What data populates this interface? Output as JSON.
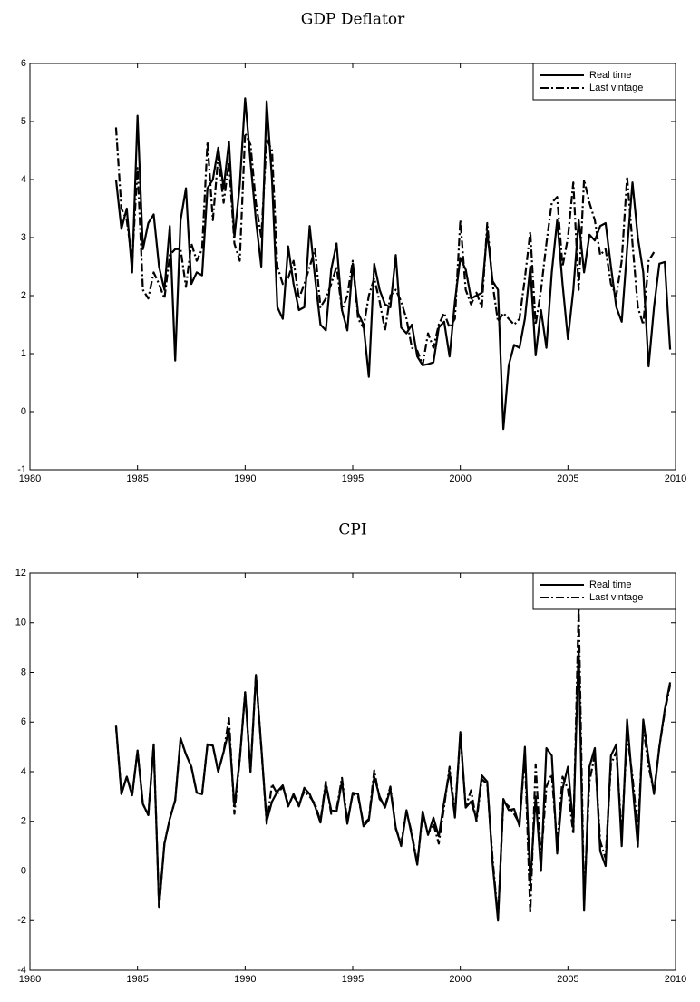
{
  "chart_data": [
    {
      "type": "line",
      "title": "GDP Deflator",
      "x": [
        1984,
        1984.25,
        1984.5,
        1984.75,
        1985,
        1985.25,
        1985.5,
        1985.75,
        1986,
        1986.25,
        1986.5,
        1986.75,
        1987,
        1987.25,
        1987.5,
        1987.75,
        1988,
        1988.25,
        1988.5,
        1988.75,
        1989,
        1989.25,
        1989.5,
        1989.75,
        1990,
        1990.25,
        1990.5,
        1990.75,
        1991,
        1991.25,
        1991.5,
        1991.75,
        1992,
        1992.25,
        1992.5,
        1992.75,
        1993,
        1993.25,
        1993.5,
        1993.75,
        1994,
        1994.25,
        1994.5,
        1994.75,
        1995,
        1995.25,
        1995.5,
        1995.75,
        1996,
        1996.25,
        1996.5,
        1996.75,
        1997,
        1997.25,
        1997.5,
        1997.75,
        1998,
        1998.25,
        1998.5,
        1998.75,
        1999,
        1999.25,
        1999.5,
        1999.75,
        2000,
        2000.25,
        2000.5,
        2000.75,
        2001,
        2001.25,
        2001.5,
        2001.75,
        2002,
        2002.25,
        2002.5,
        2002.75,
        2003,
        2003.25,
        2003.5,
        2003.75,
        2004,
        2004.25,
        2004.5,
        2004.75,
        2005,
        2005.25,
        2005.5,
        2005.75,
        2006,
        2006.25,
        2006.5,
        2006.75,
        2007,
        2007.25,
        2007.5,
        2007.75,
        2008,
        2008.25,
        2008.5,
        2008.75,
        2009,
        2009.25,
        2009.5,
        2009.75
      ],
      "series": [
        {
          "name": "Real time",
          "color": "#000000",
          "line_style": "solid",
          "values": [
            4.0,
            3.15,
            3.5,
            2.4,
            5.1,
            2.8,
            3.25,
            3.4,
            2.5,
            2.1,
            3.2,
            0.88,
            3.3,
            3.85,
            2.2,
            2.4,
            2.35,
            3.85,
            4.0,
            4.55,
            3.85,
            4.65,
            3.0,
            3.9,
            5.4,
            4.3,
            3.3,
            2.5,
            5.35,
            4.0,
            1.8,
            1.6,
            2.85,
            2.2,
            1.75,
            1.8,
            3.2,
            2.3,
            1.5,
            1.4,
            2.45,
            2.9,
            1.75,
            1.4,
            2.55,
            1.7,
            1.5,
            0.6,
            2.55,
            2.1,
            1.85,
            1.8,
            2.7,
            1.45,
            1.35,
            1.5,
            0.95,
            0.8,
            0.82,
            0.85,
            1.45,
            1.55,
            0.95,
            1.9,
            2.65,
            2.45,
            1.95,
            2.0,
            2.05,
            3.1,
            2.25,
            2.1,
            -0.3,
            0.8,
            1.15,
            1.1,
            1.6,
            2.5,
            0.97,
            1.75,
            1.1,
            2.4,
            3.3,
            2.2,
            1.25,
            2.1,
            3.3,
            2.4,
            3.05,
            2.95,
            3.2,
            3.25,
            2.5,
            1.8,
            1.55,
            2.8,
            3.95,
            3.0,
            2.4,
            0.78,
            1.8,
            2.55,
            2.58,
            1.07
          ]
        },
        {
          "name": "Last vintage",
          "color": "#000000",
          "line_style": "dash-dot",
          "values": [
            4.9,
            3.5,
            3.3,
            2.6,
            4.2,
            2.1,
            1.95,
            2.4,
            2.2,
            1.95,
            2.7,
            2.8,
            2.8,
            2.15,
            2.9,
            2.6,
            2.8,
            4.65,
            3.3,
            4.4,
            3.6,
            4.3,
            2.9,
            2.6,
            4.8,
            4.6,
            3.6,
            3.0,
            4.7,
            4.5,
            2.5,
            2.2,
            2.3,
            2.6,
            1.95,
            2.2,
            2.5,
            2.8,
            1.8,
            1.95,
            2.2,
            2.5,
            1.75,
            2.0,
            2.6,
            1.6,
            1.45,
            2.0,
            2.3,
            1.9,
            1.4,
            2.0,
            2.1,
            1.9,
            1.6,
            1.1,
            1.05,
            0.8,
            1.35,
            1.1,
            1.5,
            1.7,
            1.45,
            1.6,
            3.3,
            2.1,
            1.85,
            2.05,
            1.8,
            3.25,
            2.2,
            1.55,
            1.7,
            1.6,
            1.5,
            1.6,
            2.3,
            3.1,
            1.5,
            2.1,
            2.9,
            3.6,
            3.7,
            2.5,
            3.0,
            3.95,
            2.1,
            4.0,
            3.6,
            3.3,
            2.7,
            2.8,
            2.2,
            2.0,
            2.6,
            4.05,
            2.9,
            1.8,
            1.5,
            2.6,
            2.75,
            null,
            null,
            null
          ]
        }
      ],
      "xlim": [
        1980,
        2010
      ],
      "xticks": [
        1980,
        1985,
        1990,
        1995,
        2000,
        2005,
        2010
      ],
      "ylim": [
        -1,
        6
      ],
      "yticks": [
        -1,
        0,
        1,
        2,
        3,
        4,
        5,
        6
      ],
      "legend": "upper right"
    },
    {
      "type": "line",
      "title": "CPI",
      "x": [
        1984,
        1984.25,
        1984.5,
        1984.75,
        1985,
        1985.25,
        1985.5,
        1985.75,
        1986,
        1986.25,
        1986.5,
        1986.75,
        1987,
        1987.25,
        1987.5,
        1987.75,
        1988,
        1988.25,
        1988.5,
        1988.75,
        1989,
        1989.25,
        1989.5,
        1989.75,
        1990,
        1990.25,
        1990.5,
        1990.75,
        1991,
        1991.25,
        1991.5,
        1991.75,
        1992,
        1992.25,
        1992.5,
        1992.75,
        1993,
        1993.25,
        1993.5,
        1993.75,
        1994,
        1994.25,
        1994.5,
        1994.75,
        1995,
        1995.25,
        1995.5,
        1995.75,
        1996,
        1996.25,
        1996.5,
        1996.75,
        1997,
        1997.25,
        1997.5,
        1997.75,
        1998,
        1998.25,
        1998.5,
        1998.75,
        1999,
        1999.25,
        1999.5,
        1999.75,
        2000,
        2000.25,
        2000.5,
        2000.75,
        2001,
        2001.25,
        2001.5,
        2001.75,
        2002,
        2002.25,
        2002.5,
        2002.75,
        2003,
        2003.25,
        2003.5,
        2003.75,
        2004,
        2004.25,
        2004.5,
        2004.75,
        2005,
        2005.25,
        2005.5,
        2005.75,
        2006,
        2006.25,
        2006.5,
        2006.75,
        2007,
        2007.25,
        2007.5,
        2007.75,
        2008,
        2008.25,
        2008.5,
        2008.75,
        2009,
        2009.25,
        2009.5,
        2009.75
      ],
      "series": [
        {
          "name": "Real time",
          "color": "#000000",
          "line_style": "solid",
          "values": [
            5.85,
            3.1,
            3.8,
            3.05,
            4.85,
            2.7,
            2.25,
            5.1,
            -1.45,
            1.1,
            2.1,
            2.85,
            5.35,
            4.7,
            4.2,
            3.15,
            3.1,
            5.1,
            5.05,
            4.0,
            4.8,
            5.7,
            2.6,
            4.5,
            7.2,
            4.0,
            7.9,
            5.0,
            2.0,
            2.8,
            3.2,
            3.45,
            2.6,
            3.1,
            2.6,
            3.35,
            3.1,
            2.6,
            1.95,
            3.5,
            2.45,
            2.4,
            3.6,
            1.9,
            3.15,
            3.1,
            1.8,
            2.05,
            3.8,
            3.0,
            2.55,
            3.3,
            1.75,
            1.0,
            2.45,
            1.4,
            0.25,
            2.4,
            1.45,
            2.15,
            1.4,
            2.8,
            4.0,
            2.15,
            5.6,
            2.55,
            2.8,
            2.1,
            3.85,
            3.6,
            0.3,
            -2.0,
            2.9,
            2.45,
            2.5,
            1.8,
            5.0,
            -0.5,
            3.0,
            0.0,
            4.95,
            4.65,
            0.7,
            3.3,
            4.2,
            1.8,
            9.0,
            -1.6,
            4.2,
            4.95,
            0.8,
            0.2,
            4.65,
            5.1,
            1.0,
            6.1,
            3.5,
            0.98,
            6.1,
            4.5,
            3.1,
            5.0,
            6.5,
            7.6
          ]
        },
        {
          "name": "Last vintage",
          "color": "#000000",
          "line_style": "dash-dot",
          "values": [
            5.85,
            3.1,
            3.8,
            3.05,
            4.85,
            2.7,
            2.25,
            5.1,
            -1.45,
            1.1,
            2.1,
            2.85,
            5.3,
            4.7,
            4.2,
            3.15,
            3.1,
            5.1,
            5.05,
            4.0,
            4.8,
            6.15,
            2.3,
            4.5,
            7.2,
            4.0,
            7.9,
            5.0,
            1.9,
            3.5,
            3.1,
            3.4,
            2.7,
            3.0,
            2.7,
            3.2,
            3.0,
            2.7,
            2.0,
            3.6,
            2.3,
            2.5,
            3.75,
            2.0,
            3.1,
            3.0,
            1.9,
            2.1,
            4.05,
            2.9,
            2.6,
            3.4,
            1.7,
            1.1,
            2.4,
            1.5,
            0.3,
            2.3,
            1.5,
            1.9,
            1.1,
            2.6,
            4.2,
            2.3,
            5.5,
            2.6,
            3.25,
            2.0,
            3.7,
            3.5,
            0.5,
            -1.9,
            2.8,
            2.6,
            2.3,
            1.9,
            4.7,
            -1.7,
            4.3,
            0.5,
            3.4,
            3.9,
            1.0,
            3.8,
            3.3,
            1.5,
            10.6,
            -1.3,
            3.6,
            4.7,
            1.2,
            0.5,
            4.3,
            4.8,
            1.5,
            5.5,
            3.8,
            1.6,
            5.8,
            4.2,
            3.2,
            5.0,
            6.4,
            7.5
          ]
        }
      ],
      "xlim": [
        1980,
        2010
      ],
      "xticks": [
        1980,
        1985,
        1990,
        1995,
        2000,
        2005,
        2010
      ],
      "ylim": [
        -4,
        12
      ],
      "yticks": [
        -4,
        -2,
        0,
        2,
        4,
        6,
        8,
        10,
        12
      ],
      "legend": "upper right"
    }
  ]
}
